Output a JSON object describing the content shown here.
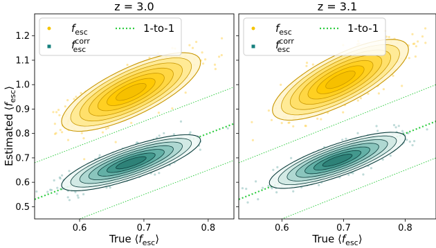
{
  "figure": {
    "ylabel_prefix": "Estimated ⟨",
    "ylabel_var": "f",
    "ylabel_sub": "esc",
    "ylabel_suffix": "⟩",
    "xlabel_prefix": "True ⟨",
    "xlabel_var": "f",
    "xlabel_sub": "esc",
    "xlabel_suffix": "⟩"
  },
  "colors": {
    "fesc": "#f5c400",
    "fesc_points": "#ffd24d",
    "fesc_contour_line": "#c89600",
    "fesc_contour_fill": [
      "#fff4cc",
      "#ffe98f",
      "#ffdf66",
      "#ffd640",
      "#ffcf1f",
      "#ffc800",
      "#f5bf00"
    ],
    "corr": "#16807e",
    "corr_points": "#7fb7b4",
    "corr_contour_line": "#0b3d3c",
    "corr_contour_fill": [
      "#eef7f5",
      "#cfe8e3",
      "#abd6cf",
      "#86c3ba",
      "#5eada3",
      "#3f968b",
      "#2c7f76"
    ],
    "one_to_one": "#2ecc40"
  },
  "chart_data": [
    {
      "type": "scatter",
      "title": "z = 3.0",
      "xlim": [
        0.53,
        0.84
      ],
      "ylim": [
        0.45,
        1.29
      ],
      "xticks": [
        0.6,
        0.7,
        0.8
      ],
      "yticks": [
        0.5,
        0.6,
        0.7,
        0.8,
        0.9,
        1.0,
        1.1,
        1.2
      ],
      "legend": {
        "position": "top-left",
        "entries": [
          {
            "var": "f",
            "sub": "esc",
            "sup": ""
          },
          {
            "var": "f",
            "sub": "esc",
            "sup": "corr"
          },
          {
            "label": "1-to-1"
          }
        ]
      },
      "one_to_one": {
        "line": [
          [
            0.53,
            0.53
          ],
          [
            0.84,
            0.84
          ]
        ],
        "bounds_offset": 0.15
      },
      "series": [
        {
          "key": "fesc",
          "center": [
            0.68,
            0.97
          ],
          "spread": [
            0.047,
            0.07
          ],
          "rho": 0.75,
          "n": 700
        },
        {
          "key": "corr",
          "center": [
            0.68,
            0.68
          ],
          "spread": [
            0.047,
            0.05
          ],
          "rho": 0.8,
          "n": 700
        }
      ]
    },
    {
      "type": "scatter",
      "title": "z = 3.1",
      "xlim": [
        0.53,
        0.85
      ],
      "ylim": [
        0.45,
        1.29
      ],
      "xticks": [
        0.6,
        0.7,
        0.8
      ],
      "yticks": [
        0.5,
        0.6,
        0.7,
        0.8,
        0.9,
        1.0,
        1.1,
        1.2
      ],
      "legend": {
        "position": "top-left",
        "entries": [
          {
            "var": "f",
            "sub": "esc",
            "sup": ""
          },
          {
            "var": "f",
            "sub": "esc",
            "sup": "corr"
          },
          {
            "label": "1-to-1"
          }
        ]
      },
      "one_to_one": {
        "line": [
          [
            0.53,
            0.53
          ],
          [
            0.85,
            0.85
          ]
        ],
        "bounds_offset": 0.15
      },
      "series": [
        {
          "key": "fesc",
          "center": [
            0.695,
            1.02
          ],
          "spread": [
            0.048,
            0.072
          ],
          "rho": 0.75,
          "n": 700
        },
        {
          "key": "corr",
          "center": [
            0.69,
            0.69
          ],
          "spread": [
            0.048,
            0.05
          ],
          "rho": 0.8,
          "n": 700
        }
      ]
    }
  ]
}
